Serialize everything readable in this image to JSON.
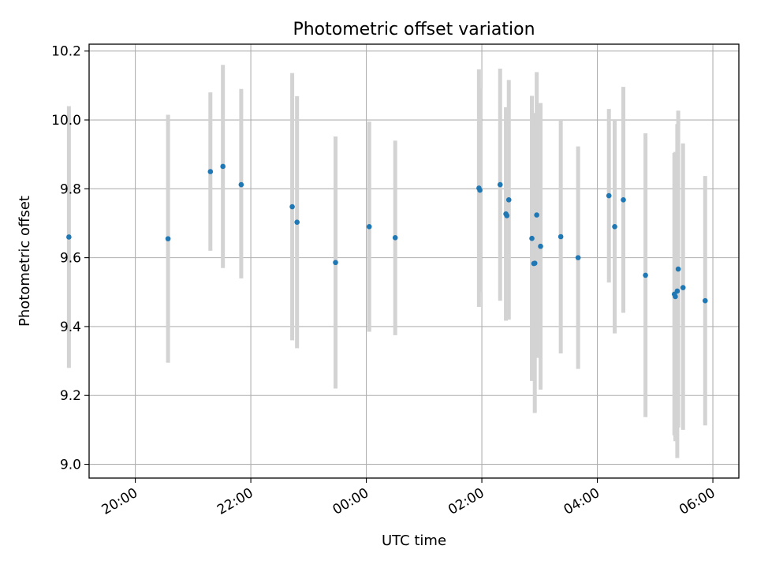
{
  "chart_data": {
    "type": "scatter",
    "title": "Photometric offset variation",
    "xlabel": "UTC time",
    "ylabel": "Photometric offset",
    "x_axis_kind": "time",
    "x_unit": "hours (UTC, HH:MM)",
    "xlim": [
      "19:12",
      "06:27"
    ],
    "ylim": [
      8.96,
      10.22
    ],
    "x_ticks": [
      "20:00",
      "22:00",
      "00:00",
      "02:00",
      "04:00",
      "06:00"
    ],
    "y_ticks": [
      "9.0",
      "9.2",
      "9.4",
      "9.6",
      "9.8",
      "10.0",
      "10.2"
    ],
    "grid": true,
    "marker_color": "#1f77b4",
    "errorbar_color": "#d3d3d3",
    "points": [
      {
        "x": "18:51",
        "y": 9.66,
        "low": 9.28,
        "high": 10.04
      },
      {
        "x": "20:34",
        "y": 9.655,
        "low": 9.295,
        "high": 10.015
      },
      {
        "x": "21:18",
        "y": 9.85,
        "low": 9.62,
        "high": 10.08
      },
      {
        "x": "21:31",
        "y": 9.865,
        "low": 9.57,
        "high": 10.16
      },
      {
        "x": "21:50",
        "y": 9.812,
        "low": 9.54,
        "high": 10.09
      },
      {
        "x": "22:43",
        "y": 9.748,
        "low": 9.36,
        "high": 10.136
      },
      {
        "x": "22:48",
        "y": 9.703,
        "low": 9.337,
        "high": 10.069
      },
      {
        "x": "23:28",
        "y": 9.586,
        "low": 9.22,
        "high": 9.952
      },
      {
        "x": "00:03",
        "y": 9.69,
        "low": 9.385,
        "high": 9.995
      },
      {
        "x": "00:30",
        "y": 9.658,
        "low": 9.375,
        "high": 9.94
      },
      {
        "x": "01:57",
        "y": 9.802,
        "low": 9.457,
        "high": 10.147
      },
      {
        "x": "01:58",
        "y": 9.796,
        "low": 9.5,
        "high": 10.092
      },
      {
        "x": "02:19",
        "y": 9.812,
        "low": 9.475,
        "high": 10.149
      },
      {
        "x": "02:25",
        "y": 9.727,
        "low": 9.417,
        "high": 10.037
      },
      {
        "x": "02:26",
        "y": 9.722,
        "low": 9.44,
        "high": 10.0
      },
      {
        "x": "02:28",
        "y": 9.768,
        "low": 9.42,
        "high": 10.116
      },
      {
        "x": "02:52",
        "y": 9.656,
        "low": 9.242,
        "high": 10.07
      },
      {
        "x": "02:54",
        "y": 9.583,
        "low": 9.247,
        "high": 10.02
      },
      {
        "x": "02:55",
        "y": 9.584,
        "low": 9.149,
        "high": 10.019
      },
      {
        "x": "02:57",
        "y": 9.724,
        "low": 9.309,
        "high": 10.139
      },
      {
        "x": "03:01",
        "y": 9.633,
        "low": 9.217,
        "high": 10.049
      },
      {
        "x": "03:22",
        "y": 9.661,
        "low": 9.322,
        "high": 10.0
      },
      {
        "x": "03:40",
        "y": 9.6,
        "low": 9.277,
        "high": 9.923
      },
      {
        "x": "04:12",
        "y": 9.78,
        "low": 9.528,
        "high": 10.032
      },
      {
        "x": "04:18",
        "y": 9.69,
        "low": 9.38,
        "high": 10.0
      },
      {
        "x": "04:27",
        "y": 9.768,
        "low": 9.44,
        "high": 10.096
      },
      {
        "x": "04:50",
        "y": 9.549,
        "low": 9.137,
        "high": 9.961
      },
      {
        "x": "05:20",
        "y": 9.494,
        "low": 9.084,
        "high": 9.904
      },
      {
        "x": "05:21",
        "y": 9.487,
        "low": 9.067,
        "high": 9.907
      },
      {
        "x": "05:23",
        "y": 9.503,
        "low": 9.018,
        "high": 9.988
      },
      {
        "x": "05:24",
        "y": 9.567,
        "low": 9.107,
        "high": 10.027
      },
      {
        "x": "05:29",
        "y": 9.513,
        "low": 9.1,
        "high": 9.932
      },
      {
        "x": "05:52",
        "y": 9.475,
        "low": 9.113,
        "high": 9.837
      }
    ]
  }
}
